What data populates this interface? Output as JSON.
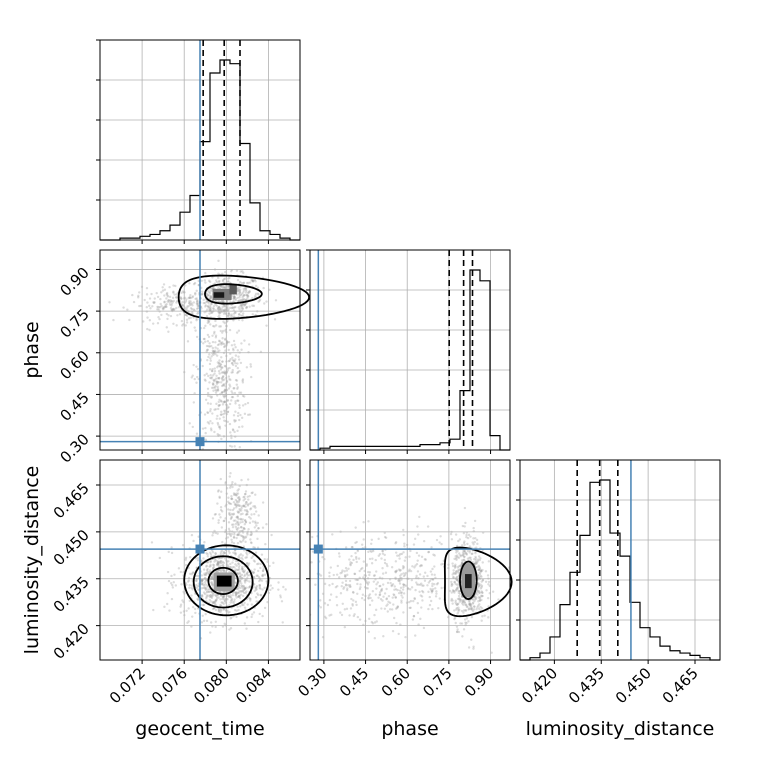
{
  "chart_data": {
    "type": "corner",
    "parameters": [
      "geocent_time",
      "phase",
      "luminosity_distance"
    ],
    "truth": {
      "geocent_time": 0.0775,
      "phase": 0.28,
      "luminosity_distance": 0.4445
    },
    "quantiles": {
      "geocent_time": [
        0.0778,
        0.0798,
        0.0813
      ],
      "phase": [
        0.751,
        0.803,
        0.835
      ],
      "luminosity_distance": [
        0.4273,
        0.4345,
        0.4403
      ]
    },
    "ranges": {
      "geocent_time": [
        0.068,
        0.087
      ],
      "phase": [
        0.25,
        0.97
      ],
      "luminosity_distance": [
        0.409,
        0.473
      ]
    },
    "ticks": {
      "geocent_time": {
        "values": [
          0.072,
          0.076,
          0.08,
          0.084
        ],
        "labels": [
          "0.072",
          "0.076",
          "0.080",
          "0.084"
        ]
      },
      "phase": {
        "values": [
          0.3,
          0.45,
          0.6,
          0.75,
          0.9
        ],
        "labels": [
          "0.30",
          "0.45",
          "0.60",
          "0.75",
          "0.90"
        ]
      },
      "luminosity_distance": {
        "values": [
          0.42,
          0.435,
          0.45,
          0.465
        ],
        "labels": [
          "0.420",
          "0.435",
          "0.450",
          "0.465"
        ]
      }
    },
    "hist": {
      "geocent_time": {
        "edges_start": 0.068,
        "bin_width": 0.00095,
        "counts": [
          0,
          0,
          1,
          1,
          2,
          3,
          5,
          8,
          15,
          24,
          53,
          90,
          97,
          95,
          52,
          20,
          5,
          3,
          1,
          0
        ]
      },
      "phase": {
        "edges_start": 0.25,
        "bin_width": 0.036,
        "counts": [
          0,
          1,
          2,
          2,
          2,
          2,
          2,
          2,
          2,
          2,
          2,
          3,
          3,
          4,
          6,
          33,
          100,
          94,
          8,
          0
        ]
      },
      "luminosity_distance": {
        "edges_start": 0.409,
        "bin_width": 0.0032,
        "counts": [
          0,
          1,
          3,
          10,
          24,
          38,
          54,
          77,
          78,
          55,
          45,
          25,
          14,
          10,
          6,
          4,
          3,
          2,
          1,
          0
        ]
      }
    },
    "xlabel": [
      "geocent_time",
      "phase",
      "luminosity_distance"
    ],
    "ylabel": [
      "phase",
      "luminosity_distance"
    ],
    "colors": {
      "truth": "#4682b4",
      "contour": "#000000",
      "scatter": "#9a9a9a",
      "grid": "#b0b0b0"
    },
    "grid": true
  }
}
